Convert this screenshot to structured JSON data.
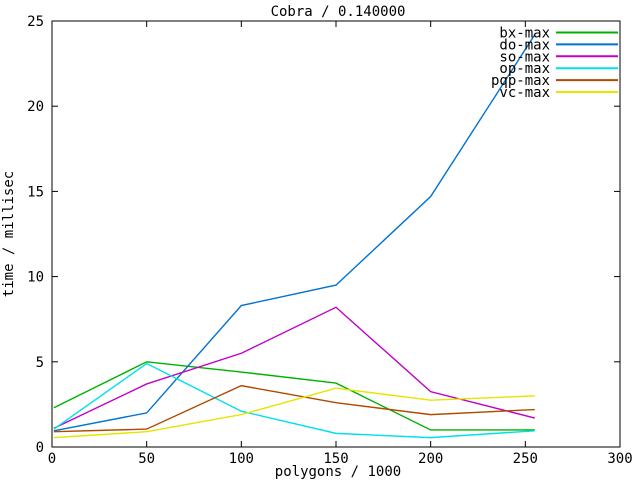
{
  "window": {
    "background_color": "#ffffff",
    "text_color": "#000000",
    "axis_color": "#000000"
  },
  "chart_data": {
    "type": "line",
    "title": "Cobra / 0.140000",
    "xlabel": "polygons / 1000",
    "ylabel": "time / millisec",
    "xlim": [
      0,
      300
    ],
    "ylim": [
      0,
      25
    ],
    "xticks": [
      0,
      50,
      100,
      150,
      200,
      250,
      300
    ],
    "yticks": [
      0,
      5,
      10,
      15,
      20,
      25
    ],
    "grid": false,
    "legend_position": "top-right-inside",
    "legend_box": false,
    "x": [
      1,
      50,
      100,
      150,
      200,
      255
    ],
    "series": [
      {
        "name": "bx-max",
        "color": "#00b000",
        "values": [
          2.3,
          5.0,
          4.4,
          3.75,
          1.0,
          1.0
        ]
      },
      {
        "name": "do-max",
        "color": "#0072d2",
        "values": [
          0.95,
          2.0,
          8.3,
          9.5,
          14.7,
          24.2
        ]
      },
      {
        "name": "so-max",
        "color": "#c000c8",
        "values": [
          1.1,
          3.7,
          5.5,
          8.2,
          3.25,
          1.7
        ]
      },
      {
        "name": "op-max",
        "color": "#00e0e6",
        "values": [
          1.05,
          4.9,
          2.1,
          0.8,
          0.55,
          0.95
        ]
      },
      {
        "name": "pqp-max",
        "color": "#b04a00",
        "values": [
          0.9,
          1.05,
          3.6,
          2.6,
          1.9,
          2.2
        ]
      },
      {
        "name": "vc-max",
        "color": "#e5e500",
        "values": [
          0.55,
          0.9,
          1.9,
          3.45,
          2.75,
          3.0
        ]
      }
    ]
  }
}
